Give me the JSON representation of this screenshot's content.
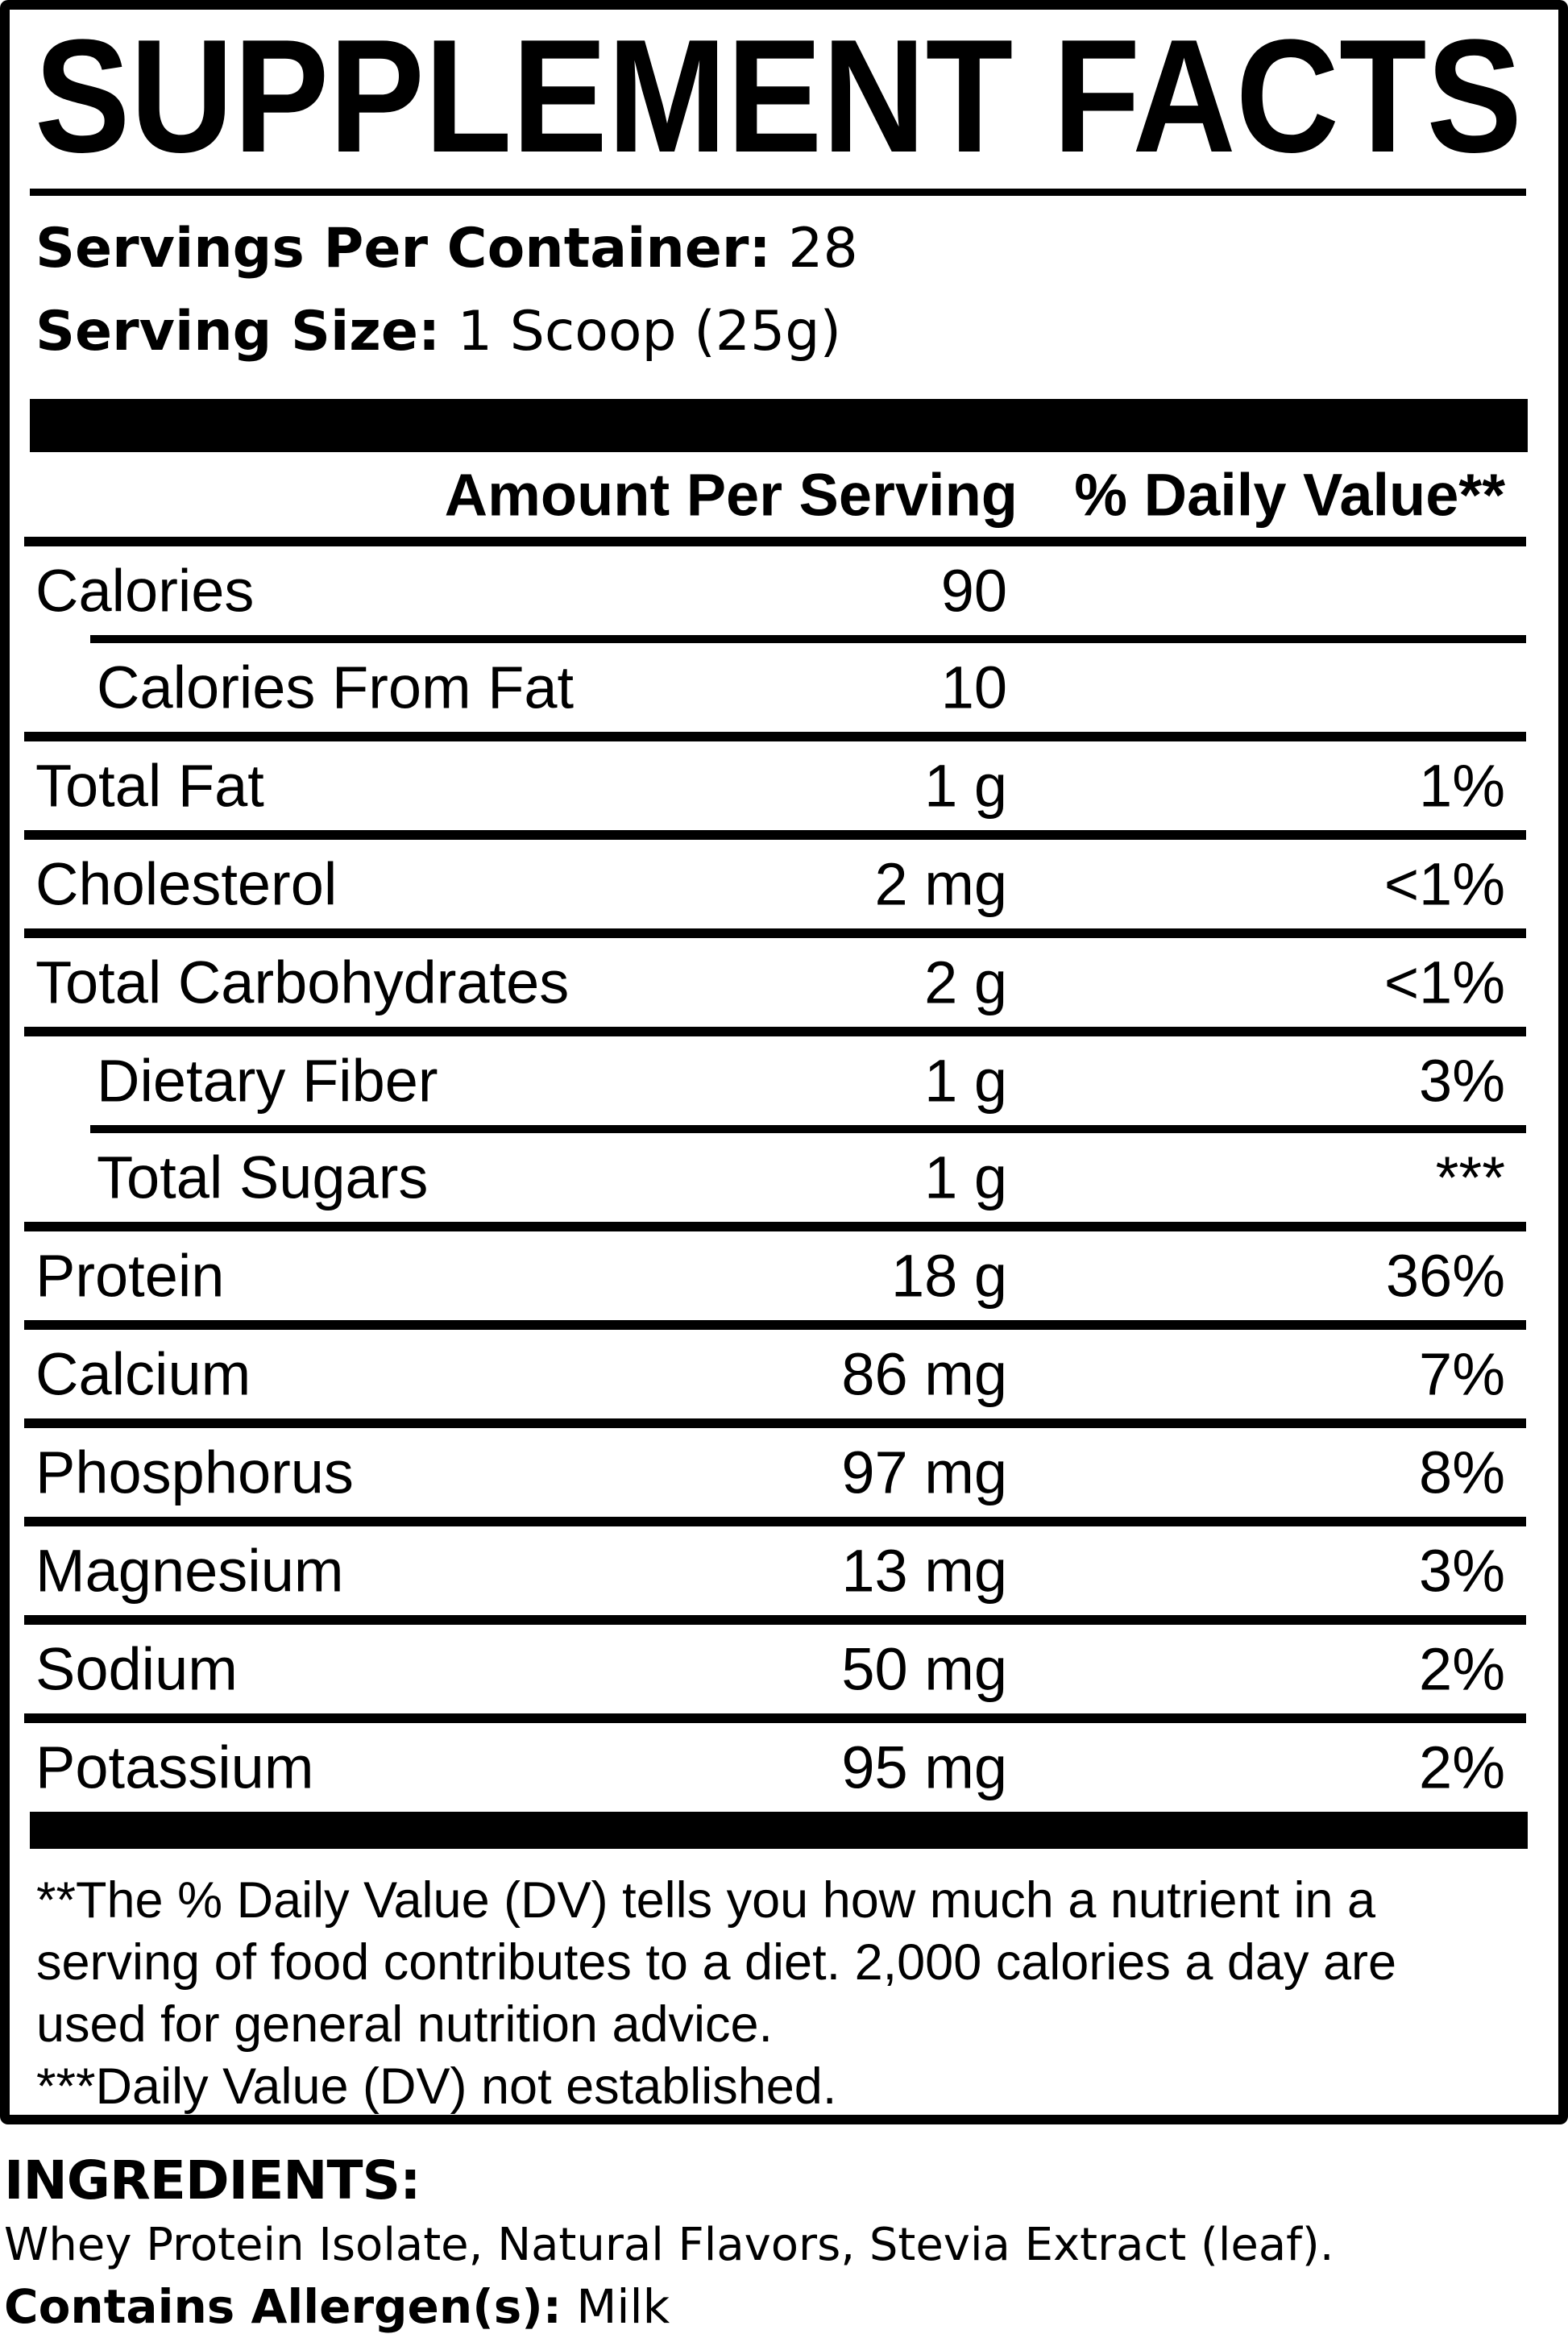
{
  "colors": {
    "ink": "#000000",
    "paper": "#ffffff"
  },
  "label": {
    "title": "SUPPLEMENT FACTS",
    "servings_per_container_label": "Servings Per Container:",
    "servings_per_container_value": " 28",
    "serving_size_label": "Serving Size:",
    "serving_size_value": " 1 Scoop (25g)",
    "columns": {
      "amount": "Amount Per Serving",
      "daily_value": "% Daily Value**"
    },
    "rows": [
      {
        "name": "Calories",
        "amount": "90",
        "dv": ""
      },
      {
        "name": "Calories From Fat",
        "amount": "10",
        "dv": ""
      },
      {
        "name": "Total Fat",
        "amount": "1 g",
        "dv": "1%"
      },
      {
        "name": "Cholesterol",
        "amount": "2 mg",
        "dv": "<1%"
      },
      {
        "name": "Total Carbohydrates",
        "amount": "2 g",
        "dv": "<1%"
      },
      {
        "name": "Dietary Fiber",
        "amount": "1 g",
        "dv": "3%"
      },
      {
        "name": "Total Sugars",
        "amount": "1 g",
        "dv": "***"
      },
      {
        "name": "Protein",
        "amount": "18 g",
        "dv": "36%"
      },
      {
        "name": "Calcium",
        "amount": "86 mg",
        "dv": "7%"
      },
      {
        "name": "Phosphorus",
        "amount": "97 mg",
        "dv": "8%"
      },
      {
        "name": "Magnesium",
        "amount": "13 mg",
        "dv": "3%"
      },
      {
        "name": "Sodium",
        "amount": "50 mg",
        "dv": "2%"
      },
      {
        "name": "Potassium",
        "amount": "95 mg",
        "dv": "2%"
      }
    ],
    "footnote_lines": [
      "**The % Daily Value (DV) tells you how much a nutrient in a",
      "serving of food contributes to a diet. 2,000 calories a day are",
      "used for general nutrition advice.",
      "***Daily Value (DV) not established."
    ]
  },
  "ingredients": {
    "heading": "INGREDIENTS:",
    "list": "Whey Protein Isolate, Natural Flavors, Stevia Extract (leaf).",
    "allergen_label": "Contains Allergen(s):",
    "allergen_value": " Milk"
  }
}
